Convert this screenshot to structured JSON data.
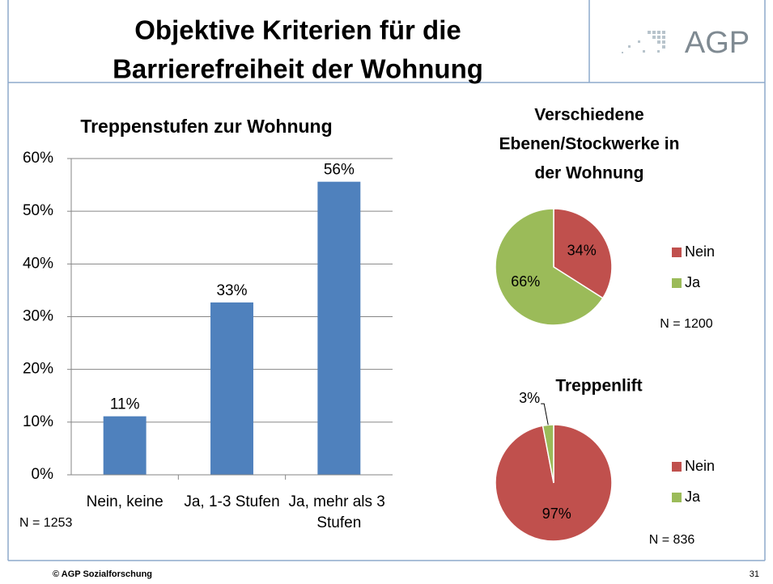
{
  "header": {
    "title_lines": [
      "Objektive Kriterien für die",
      "Barrierefreiheit der Wohnung"
    ],
    "logo": "AGP"
  },
  "footer": {
    "copyright": "© AGP Sozialforschung",
    "page": "31"
  },
  "chart_data": [
    {
      "type": "bar",
      "title": "Treppenstufen zur Wohnung",
      "categories": [
        "Nein, keine",
        "Ja, 1-3 Stufen",
        "Ja, mehr als 3 Stufen"
      ],
      "values": [
        11.1,
        32.7,
        55.6
      ],
      "value_labels": [
        "11%",
        "33%",
        "56%"
      ],
      "color": "#4f81bd",
      "ylim": [
        0,
        60
      ],
      "yticks": [
        {
          "value": 0,
          "label": "0%"
        },
        {
          "value": 10,
          "label": "10%"
        },
        {
          "value": 20,
          "label": "20%"
        },
        {
          "value": 30,
          "label": "30%"
        },
        {
          "value": 40,
          "label": "40%"
        },
        {
          "value": 50,
          "label": "50%"
        },
        {
          "value": 60,
          "label": "60%"
        }
      ],
      "grid": true,
      "note": "N = 1253"
    },
    {
      "type": "pie",
      "title": "Verschiedene Ebenen/Stockwerke in der Wohnung",
      "title_lines": [
        "Verschiedene",
        "Ebenen/Stockwerke in",
        "der Wohnung"
      ],
      "categories": [
        "Nein",
        "Ja"
      ],
      "values": [
        34,
        66
      ],
      "value_labels": [
        "34%",
        "66%"
      ],
      "colors": [
        "#c0504d",
        "#9bbb59"
      ],
      "legend": "right",
      "note": "N = 1200"
    },
    {
      "type": "pie",
      "title": "Treppenlift",
      "categories": [
        "Nein",
        "Ja"
      ],
      "values": [
        97,
        3
      ],
      "value_labels": [
        "97%",
        "3%"
      ],
      "colors": [
        "#c0504d",
        "#9bbb59"
      ],
      "legend": "right",
      "note": "N = 836"
    }
  ]
}
